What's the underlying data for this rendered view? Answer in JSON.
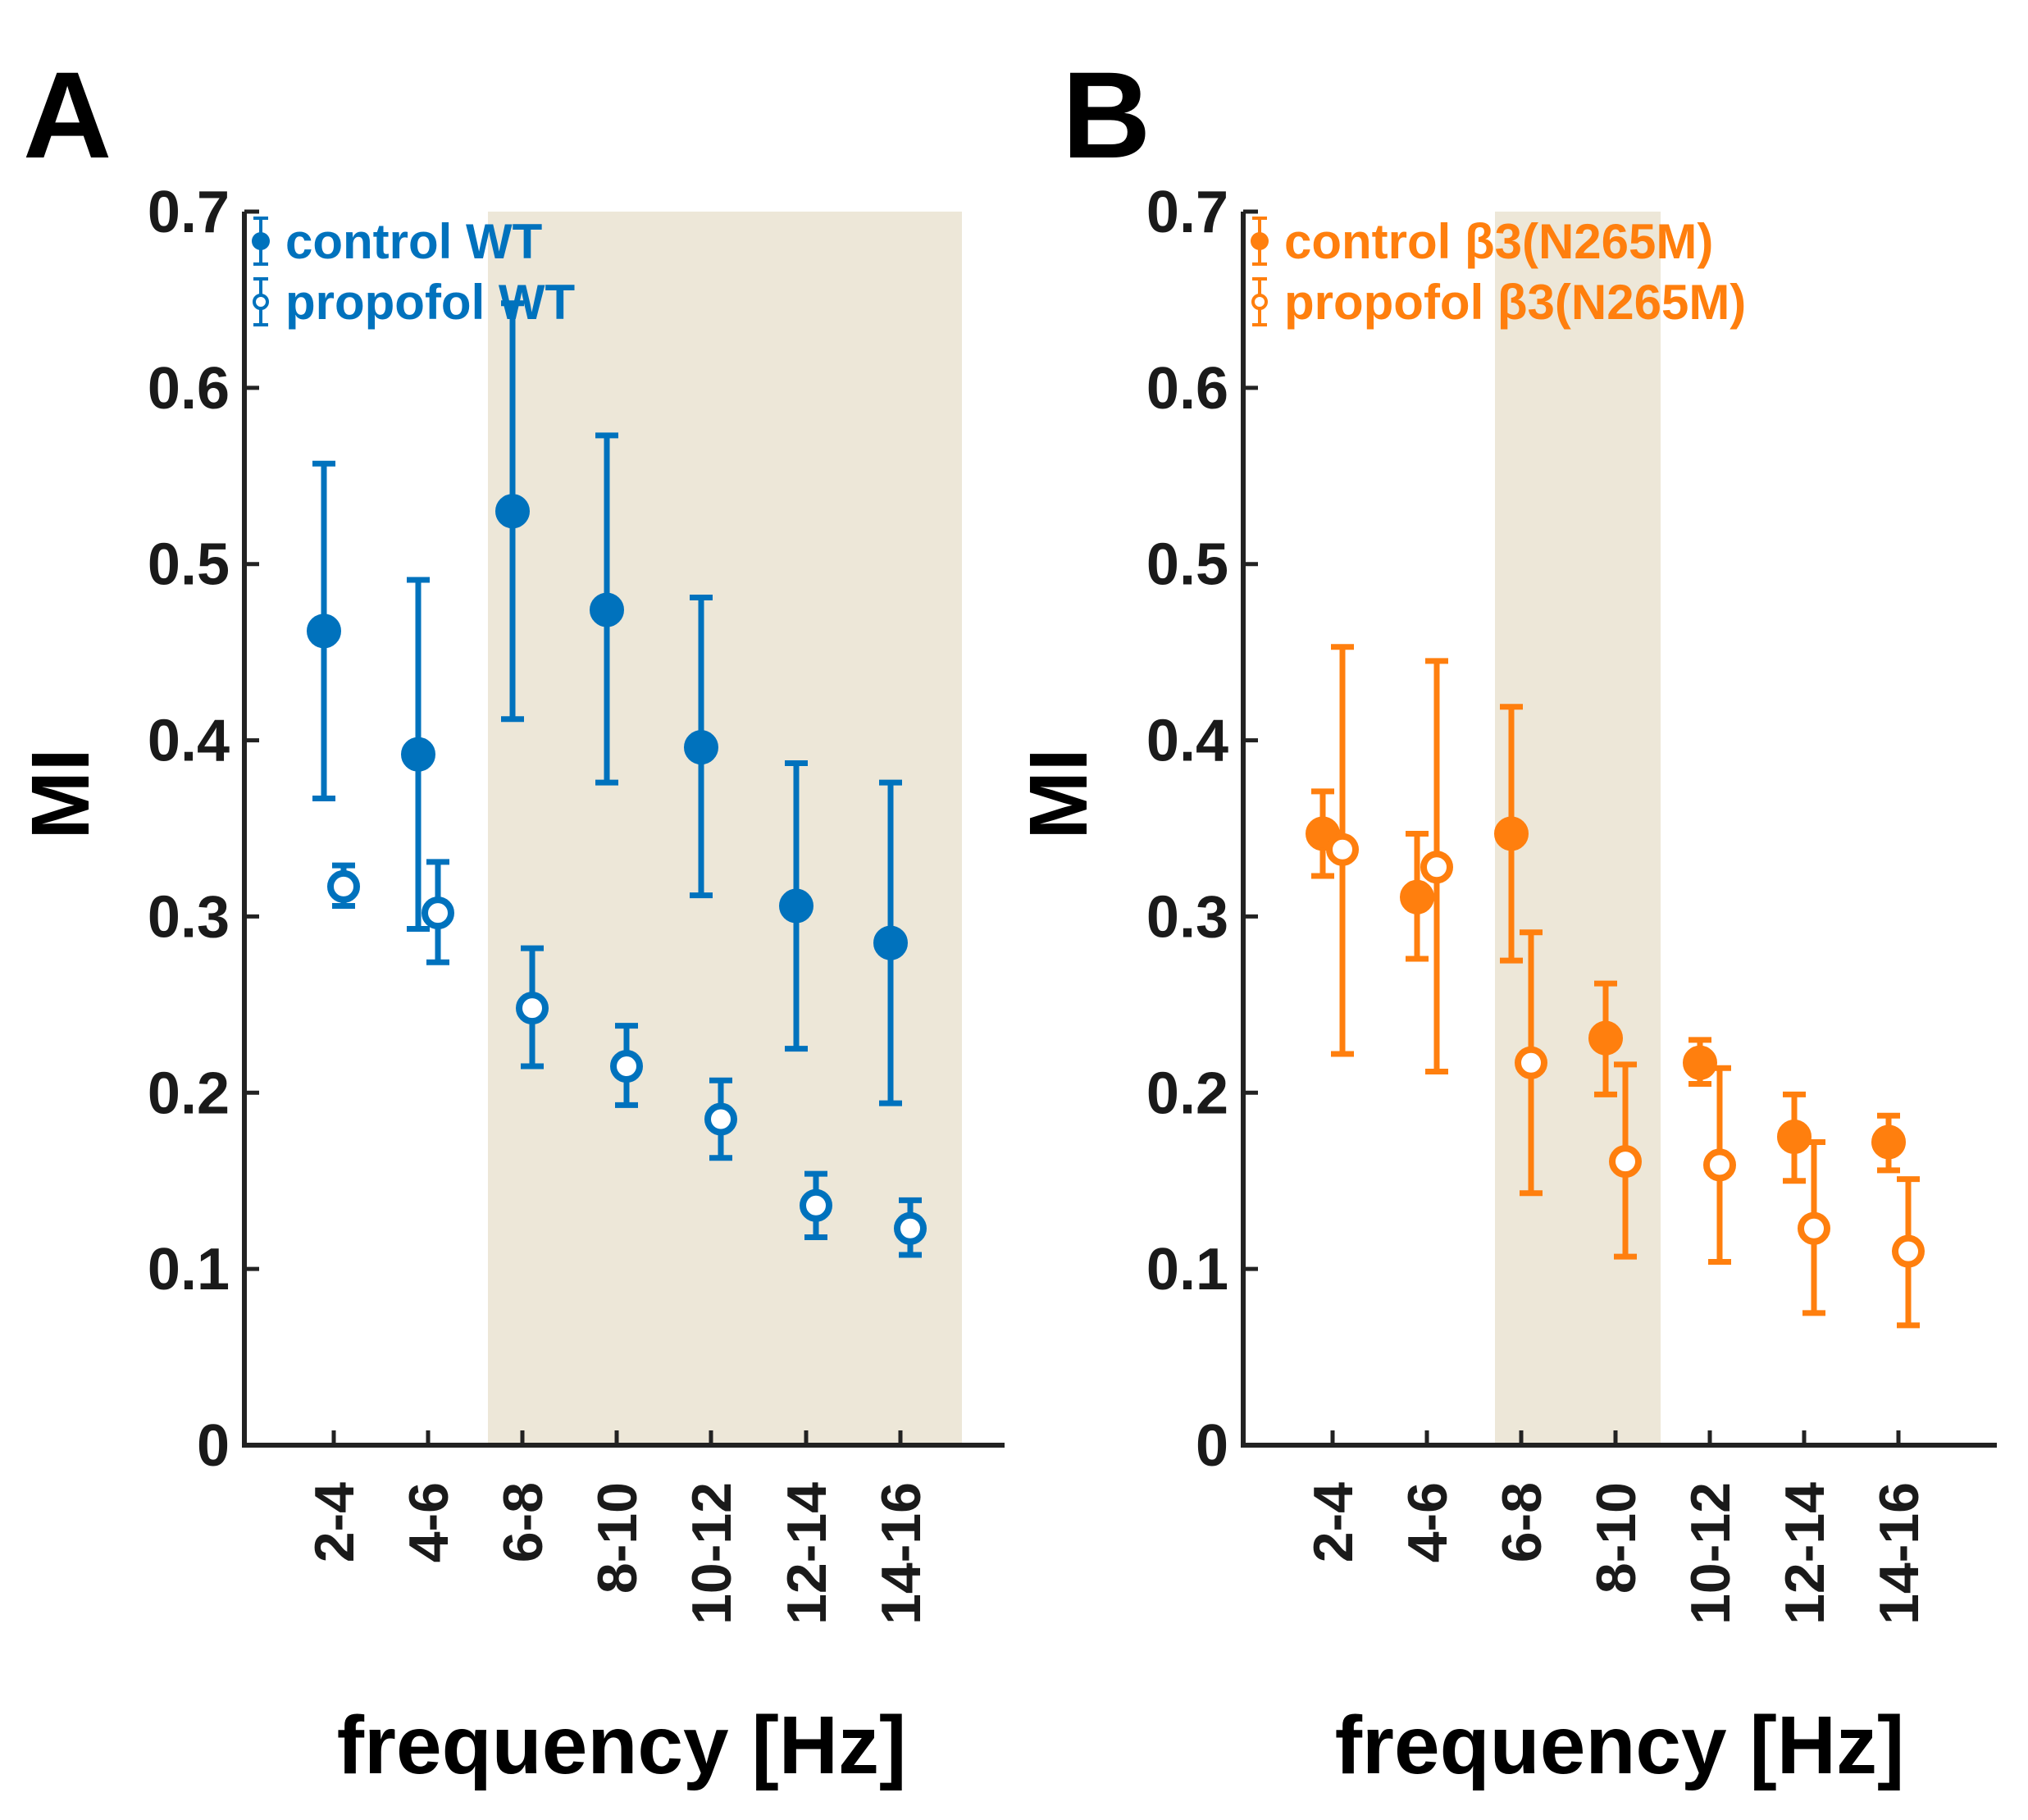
{
  "chart_data": [
    {
      "type": "scatter",
      "panel": "A",
      "xlabel": "frequency [Hz]",
      "ylabel": "MI",
      "ylim": [
        0,
        0.7
      ],
      "yticks": [
        "0",
        "0.1",
        "0.2",
        "0.3",
        "0.4",
        "0.5",
        "0.6",
        "0.7"
      ],
      "categories": [
        "2-4",
        "4-6",
        "6-8",
        "8-10",
        "10-12",
        "12-14",
        "14-16"
      ],
      "shaded_categories": [
        "6-8",
        "8-10",
        "10-12",
        "12-14",
        "14-16"
      ],
      "colors": {
        "series": "#0072BD",
        "shade": "#EDE7D8"
      },
      "series": [
        {
          "name": "control WT",
          "marker": "filled",
          "values": [
            0.462,
            0.392,
            0.53,
            0.474,
            0.396,
            0.306,
            0.285
          ],
          "lower": [
            0.367,
            0.293,
            0.412,
            0.376,
            0.312,
            0.225,
            0.194
          ],
          "upper": [
            0.557,
            0.491,
            0.648,
            0.573,
            0.481,
            0.387,
            0.376
          ]
        },
        {
          "name": "propofol WT",
          "marker": "open",
          "values": [
            0.317,
            0.302,
            0.248,
            0.215,
            0.185,
            0.136,
            0.123
          ],
          "lower": [
            0.306,
            0.274,
            0.215,
            0.193,
            0.163,
            0.118,
            0.108
          ],
          "upper": [
            0.329,
            0.331,
            0.282,
            0.238,
            0.207,
            0.154,
            0.139
          ]
        }
      ]
    },
    {
      "type": "scatter",
      "panel": "B",
      "xlabel": "frequency [Hz]",
      "ylabel": "MI",
      "ylim": [
        0,
        0.7
      ],
      "yticks": [
        "0",
        "0.1",
        "0.2",
        "0.3",
        "0.4",
        "0.5",
        "0.6",
        "0.7"
      ],
      "categories": [
        "2-4",
        "4-6",
        "6-8",
        "8-10",
        "10-12",
        "12-14",
        "14-16"
      ],
      "shaded_categories": [
        "6-8"
      ],
      "colors": {
        "series": "#FF7F0E",
        "shade": "#EDE7D8"
      },
      "series": [
        {
          "name": "control β3(N265M)",
          "marker": "filled",
          "values": [
            0.347,
            0.311,
            0.347,
            0.231,
            0.217,
            0.175,
            0.172
          ],
          "lower": [
            0.323,
            0.276,
            0.275,
            0.199,
            0.205,
            0.15,
            0.156
          ],
          "upper": [
            0.371,
            0.347,
            0.419,
            0.262,
            0.23,
            0.199,
            0.187
          ]
        },
        {
          "name": "propofol β3(N265M)",
          "marker": "open",
          "values": [
            0.338,
            0.328,
            0.217,
            0.161,
            0.159,
            0.123,
            0.11
          ],
          "lower": [
            0.222,
            0.212,
            0.143,
            0.107,
            0.104,
            0.075,
            0.068
          ],
          "upper": [
            0.453,
            0.445,
            0.291,
            0.216,
            0.214,
            0.172,
            0.151
          ]
        }
      ]
    }
  ]
}
